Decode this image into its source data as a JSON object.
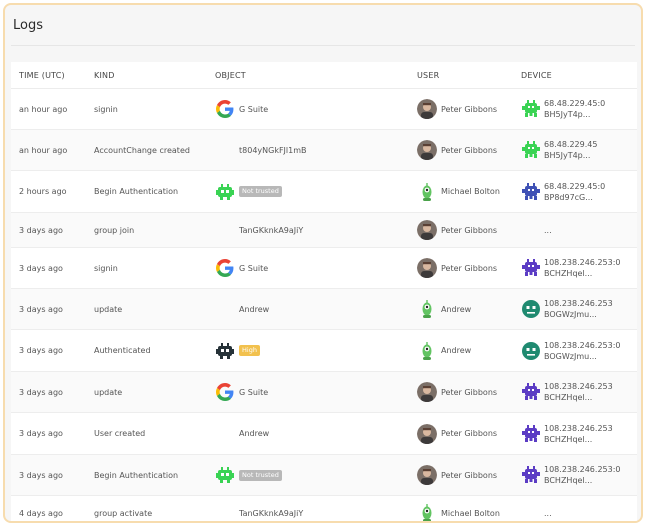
{
  "title": "Logs",
  "columns": {
    "time": "TIME (UTC)",
    "kind": "KIND",
    "object": "OBJECT",
    "user": "USER",
    "device": "DEVICE"
  },
  "rows": [
    {
      "time": "an hour ago",
      "kind": "signin",
      "object": "G Suite",
      "object_icon": "google-icon",
      "badge": "",
      "user": "Peter Gibbons",
      "user_icon": "avatar",
      "device_ip": "68.48.229.45:0",
      "device_id": "BH5JyT4p...",
      "device_icon": "invader-icon",
      "device_color": "#39d353"
    },
    {
      "time": "an hour ago",
      "kind": "AccountChange created",
      "object": "t804yNGkFJl1mB",
      "object_icon": "",
      "badge": "",
      "user": "Peter Gibbons",
      "user_icon": "avatar",
      "device_ip": "68.48.229.45",
      "device_id": "BH5JyT4p...",
      "device_icon": "invader-icon",
      "device_color": "#39d353"
    },
    {
      "time": "2 hours ago",
      "kind": "Begin Authentication",
      "object": "",
      "object_icon": "robot-icon",
      "object_color": "#39d353",
      "badge": "Not trusted",
      "user": "Michael Bolton",
      "user_icon": "alien",
      "device_ip": "68.48.229.45:0",
      "device_id": "BP8d97cG...",
      "device_icon": "invader-icon",
      "device_color": "#3f51b5"
    },
    {
      "time": "3 days ago",
      "kind": "group join",
      "object": "TanGKknkA9aJiY",
      "object_icon": "",
      "badge": "",
      "user": "Peter Gibbons",
      "user_icon": "avatar",
      "device_ip": "...",
      "device_id": "",
      "device_icon": "",
      "device_color": ""
    },
    {
      "time": "3 days ago",
      "kind": "signin",
      "object": "G Suite",
      "object_icon": "google-icon",
      "badge": "",
      "user": "Peter Gibbons",
      "user_icon": "avatar",
      "device_ip": "108.238.246.253:0",
      "device_id": "BCHZHqel...",
      "device_icon": "invader-icon",
      "device_color": "#5b3cc4"
    },
    {
      "time": "3 days ago",
      "kind": "update",
      "object": "Andrew",
      "object_icon": "",
      "badge": "",
      "user": "Andrew",
      "user_icon": "alien",
      "device_ip": "108.238.246.253",
      "device_id": "BOGWzJmu...",
      "device_icon": "face-icon",
      "device_color": "#1f8a70"
    },
    {
      "time": "3 days ago",
      "kind": "Authenticated",
      "object": "",
      "object_icon": "robot-icon",
      "object_color": "#263238",
      "badge": "High",
      "user": "Andrew",
      "user_icon": "alien",
      "device_ip": "108.238.246.253:0",
      "device_id": "BOGWzJmu...",
      "device_icon": "face-icon",
      "device_color": "#1f8a70"
    },
    {
      "time": "3 days ago",
      "kind": "update",
      "object": "G Suite",
      "object_icon": "google-icon",
      "badge": "",
      "user": "Peter Gibbons",
      "user_icon": "avatar",
      "device_ip": "108.238.246.253",
      "device_id": "BCHZHqel...",
      "device_icon": "invader-icon",
      "device_color": "#5b3cc4"
    },
    {
      "time": "3 days ago",
      "kind": "User created",
      "object": "Andrew",
      "object_icon": "",
      "badge": "",
      "user": "Peter Gibbons",
      "user_icon": "avatar",
      "device_ip": "108.238.246.253",
      "device_id": "BCHZHqel...",
      "device_icon": "invader-icon",
      "device_color": "#5b3cc4"
    },
    {
      "time": "3 days ago",
      "kind": "Begin Authentication",
      "object": "",
      "object_icon": "robot-icon",
      "object_color": "#39d353",
      "badge": "Not trusted",
      "user": "Peter Gibbons",
      "user_icon": "avatar",
      "device_ip": "108.238.246.253:0",
      "device_id": "BCHZHqel...",
      "device_icon": "invader-icon",
      "device_color": "#5b3cc4"
    },
    {
      "time": "4 days ago",
      "kind": "group activate",
      "object": "TanGKknkA9aJiY",
      "object_icon": "",
      "badge": "",
      "user": "Michael Bolton",
      "user_icon": "alien",
      "device_ip": "...",
      "device_id": "",
      "device_icon": "",
      "device_color": ""
    }
  ]
}
